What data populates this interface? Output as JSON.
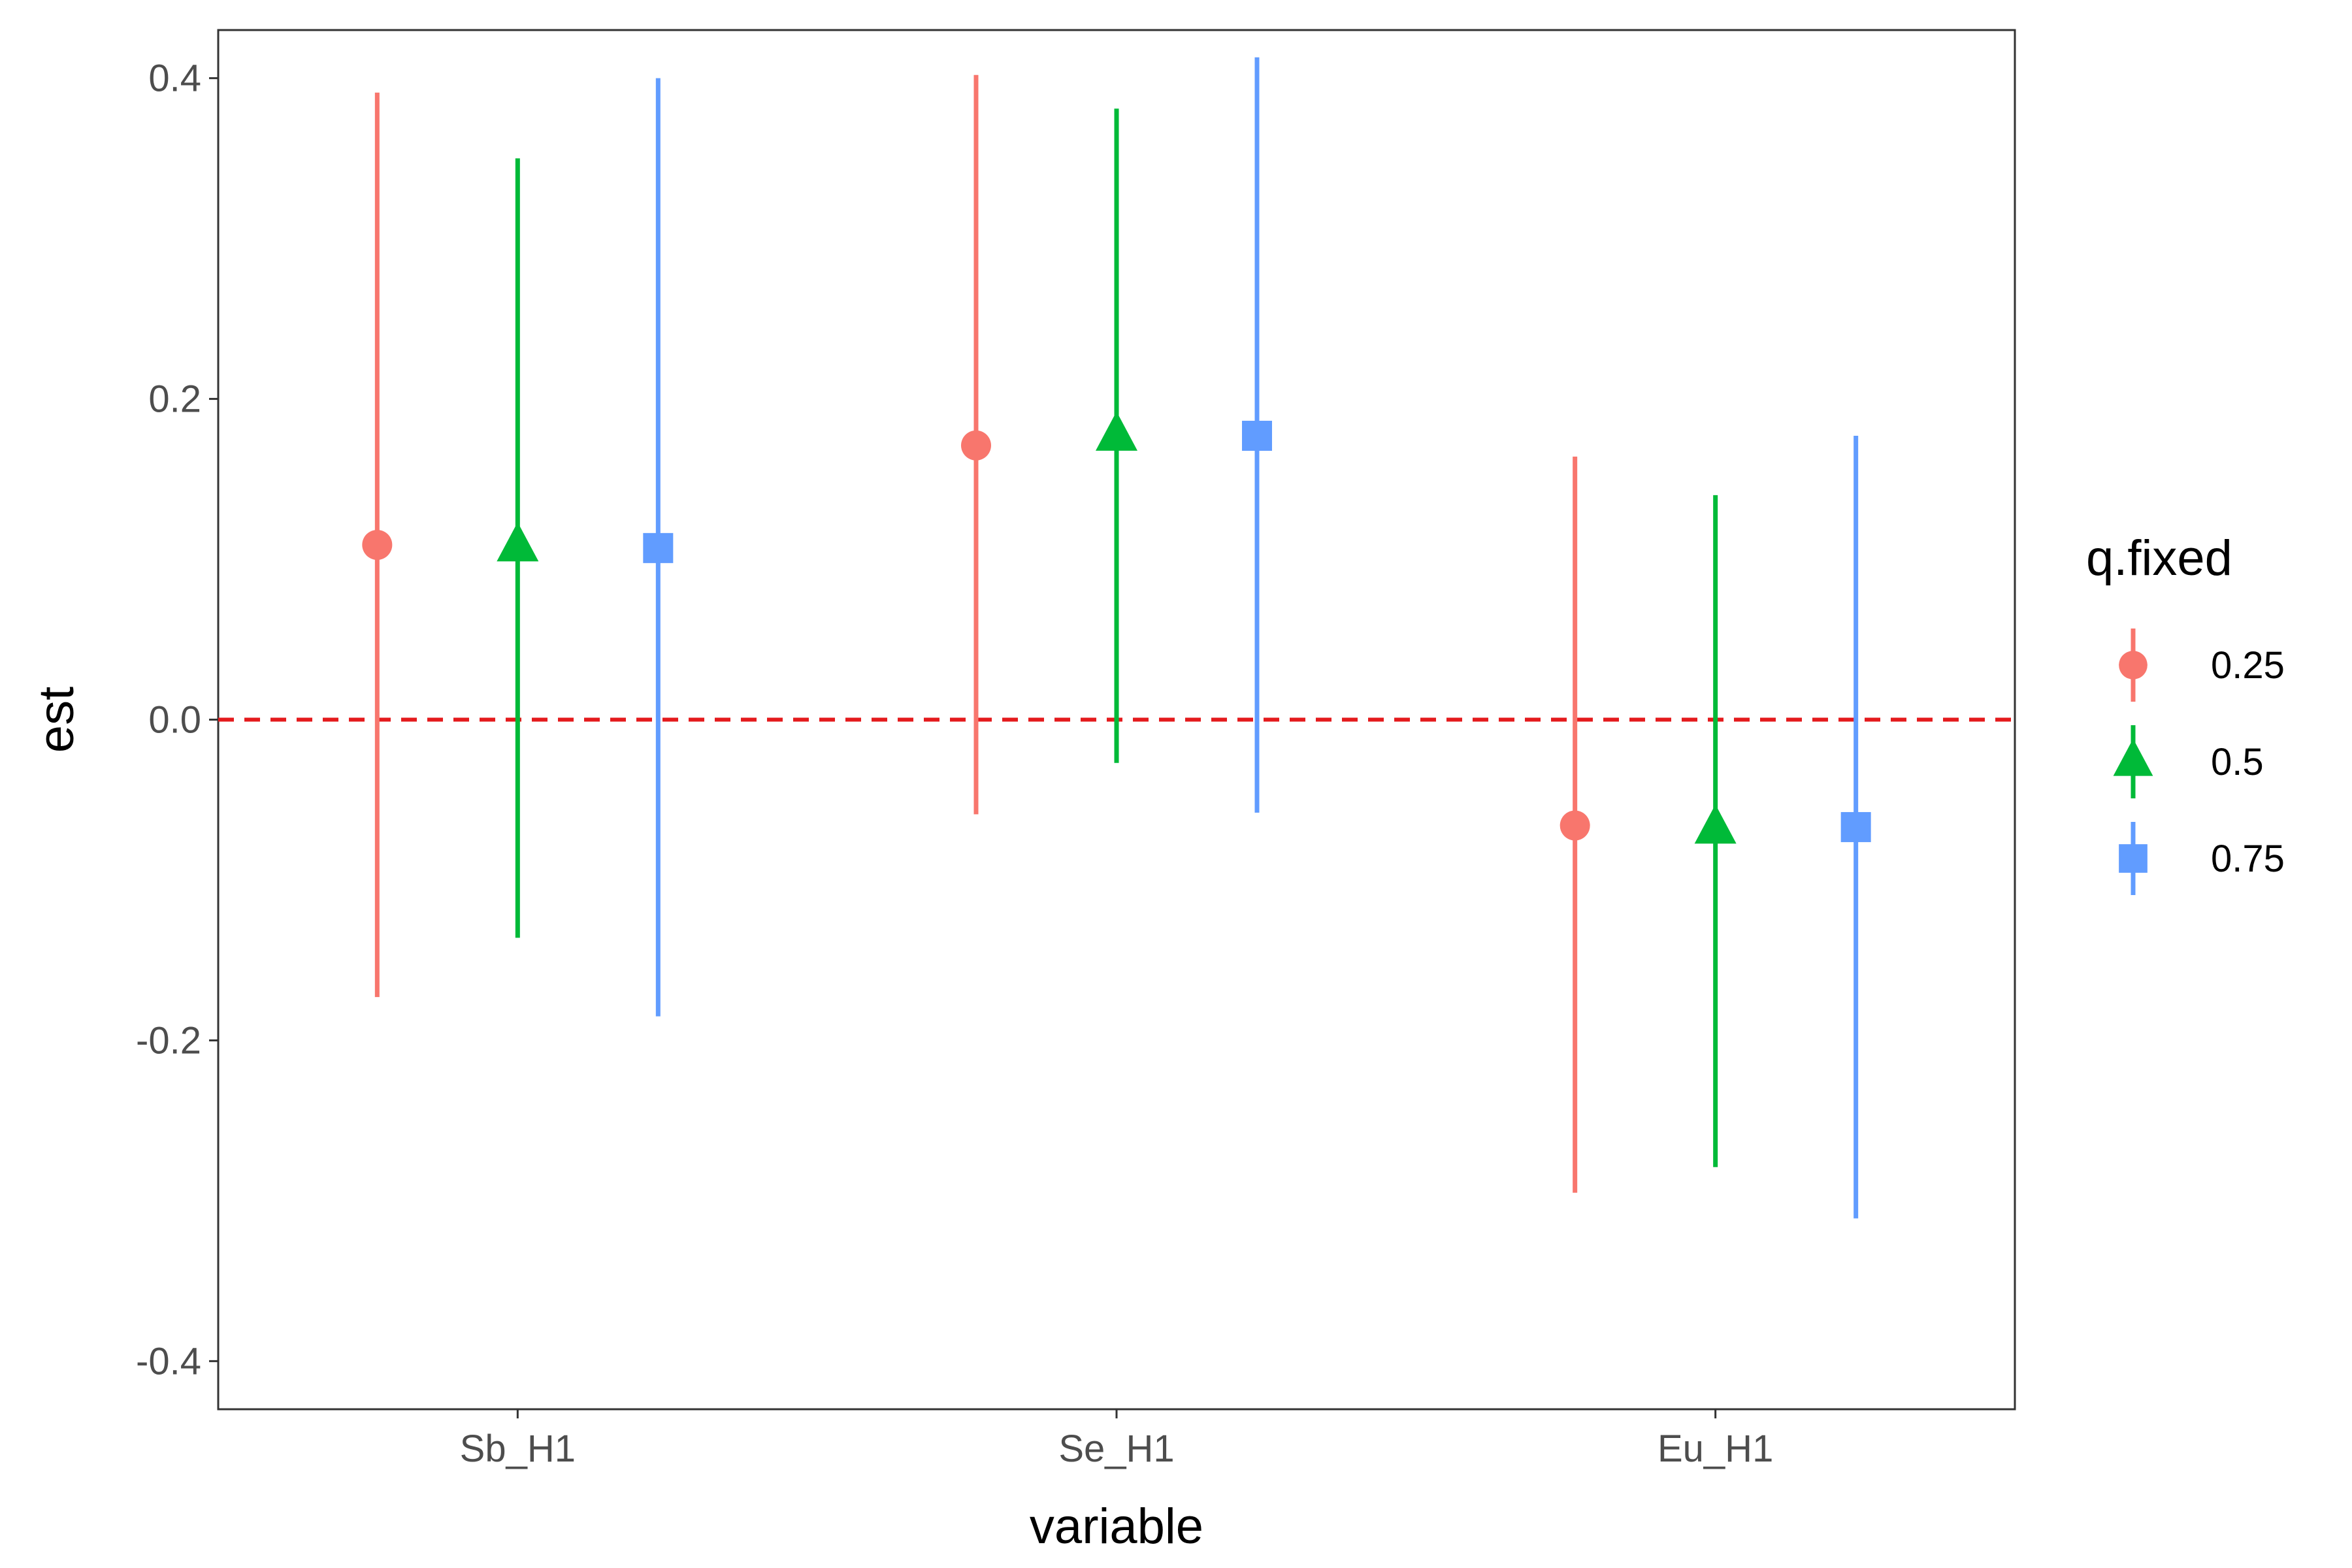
{
  "chart_data": {
    "type": "scatter",
    "subtype": "point-range",
    "title": "",
    "xlabel": "variable",
    "ylabel": "est",
    "categories": [
      "Sb_H1",
      "Se_H1",
      "Eu_H1"
    ],
    "ylim": [
      -0.43,
      0.43
    ],
    "yticks": [
      -0.4,
      -0.2,
      0.0,
      0.2,
      0.4
    ],
    "ytick_labels": [
      "-0.4",
      "-0.2",
      "0.0",
      "0.2",
      "0.4"
    ],
    "grid": false,
    "reference_line": {
      "y": 0.0,
      "style": "dashed",
      "color": "#E41A1C"
    },
    "legend": {
      "title": "q.fixed",
      "position": "right"
    },
    "series": [
      {
        "name": "0.25",
        "color": "#F8766D",
        "marker": "circle",
        "est": [
          0.109,
          0.171,
          -0.066
        ],
        "lower": [
          -0.173,
          -0.059,
          -0.295
        ],
        "upper": [
          0.391,
          0.402,
          0.164
        ]
      },
      {
        "name": "0.5",
        "color": "#00BA38",
        "marker": "triangle",
        "est": [
          0.108,
          0.177,
          -0.068
        ],
        "lower": [
          -0.136,
          -0.027,
          -0.279
        ],
        "upper": [
          0.35,
          0.381,
          0.14
        ]
      },
      {
        "name": "0.75",
        "color": "#619CFF",
        "marker": "square",
        "est": [
          0.107,
          0.177,
          -0.067
        ],
        "lower": [
          -0.185,
          -0.058,
          -0.311
        ],
        "upper": [
          0.4,
          0.413,
          0.177
        ]
      }
    ]
  }
}
